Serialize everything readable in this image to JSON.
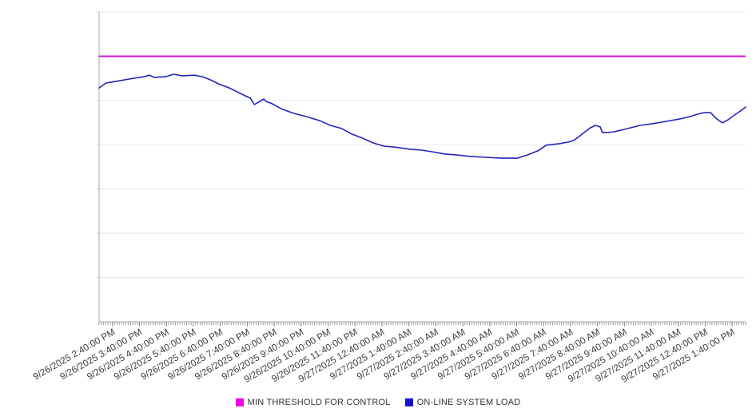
{
  "chart_data": {
    "type": "line",
    "title": "",
    "x_axis": {
      "tick_labels": [
        "9/26/2025 2:40:00 PM",
        "9/26/2025 3:40:00 PM",
        "9/26/2025 4:40:00 PM",
        "9/26/2025 5:40:00 PM",
        "9/26/2025 6:40:00 PM",
        "9/26/2025 7:40:00 PM",
        "9/26/2025 8:40:00 PM",
        "9/26/2025 9:40:00 PM",
        "9/26/2025 10:40:00 PM",
        "9/26/2025 11:40:00 PM",
        "9/27/2025 12:40:00 AM",
        "9/27/2025 1:40:00 AM",
        "9/27/2025 2:40:00 AM",
        "9/27/2025 3:40:00 AM",
        "9/27/2025 4:40:00 AM",
        "9/27/2025 5:40:00 AM",
        "9/27/2025 6:40:00 AM",
        "9/27/2025 7:40:00 AM",
        "9/27/2025 8:40:00 AM",
        "9/27/2025 9:40:00 AM",
        "9/27/2025 10:40:00 AM",
        "9/27/2025 11:40:00 AM",
        "9/27/2025 12:40:00 PM",
        "9/27/2025 1:40:00 PM"
      ],
      "minor_ticks_per_hour": 12,
      "range_minutes": 1440
    },
    "y_axis": {
      "tick_labels_visible": false,
      "normalized_range": [
        0,
        100
      ],
      "gridline_divisions": 7
    },
    "legend_position": "bottom",
    "series": [
      {
        "name": "MIN THRESHOLD FOR CONTROL",
        "type": "threshold",
        "value": 85.7,
        "color": "#D411D4",
        "legend_swatch_color": "#EE00EE"
      },
      {
        "name": "ON-LINE SYSTEM LOAD",
        "type": "line",
        "color": "#2424BC",
        "legend_swatch_color": "#1414CF",
        "points": [
          [
            0,
            75.5
          ],
          [
            16,
            77.1
          ],
          [
            46,
            77.8
          ],
          [
            77,
            78.6
          ],
          [
            100,
            79.1
          ],
          [
            112,
            79.6
          ],
          [
            123,
            78.9
          ],
          [
            148,
            79.1
          ],
          [
            166,
            79.9
          ],
          [
            184,
            79.4
          ],
          [
            212,
            79.6
          ],
          [
            230,
            79.1
          ],
          [
            248,
            78.1
          ],
          [
            266,
            76.8
          ],
          [
            290,
            75.5
          ],
          [
            301,
            74.7
          ],
          [
            326,
            72.9
          ],
          [
            337,
            72.2
          ],
          [
            346,
            70.1
          ],
          [
            355,
            70.9
          ],
          [
            367,
            71.9
          ],
          [
            372,
            71.1
          ],
          [
            385,
            70.4
          ],
          [
            408,
            68.6
          ],
          [
            433,
            67.3
          ],
          [
            462,
            66.2
          ],
          [
            492,
            64.9
          ],
          [
            515,
            63.4
          ],
          [
            540,
            62.4
          ],
          [
            563,
            60.6
          ],
          [
            586,
            59.3
          ],
          [
            611,
            57.7
          ],
          [
            634,
            56.7
          ],
          [
            658,
            56.4
          ],
          [
            693,
            55.7
          ],
          [
            718,
            55.4
          ],
          [
            741,
            54.9
          ],
          [
            772,
            54.1
          ],
          [
            795,
            53.9
          ],
          [
            825,
            53.4
          ],
          [
            861,
            53.1
          ],
          [
            896,
            52.8
          ],
          [
            932,
            52.8
          ],
          [
            955,
            53.9
          ],
          [
            978,
            55.2
          ],
          [
            996,
            57.0
          ],
          [
            1026,
            57.5
          ],
          [
            1044,
            58.0
          ],
          [
            1057,
            58.5
          ],
          [
            1069,
            59.8
          ],
          [
            1082,
            61.3
          ],
          [
            1094,
            62.6
          ],
          [
            1105,
            63.4
          ],
          [
            1116,
            62.9
          ],
          [
            1121,
            61.1
          ],
          [
            1133,
            61.1
          ],
          [
            1146,
            61.3
          ],
          [
            1169,
            62.1
          ],
          [
            1205,
            63.4
          ],
          [
            1231,
            63.9
          ],
          [
            1263,
            64.7
          ],
          [
            1294,
            65.5
          ],
          [
            1315,
            66.2
          ],
          [
            1333,
            67.0
          ],
          [
            1347,
            67.5
          ],
          [
            1362,
            67.5
          ],
          [
            1374,
            65.7
          ],
          [
            1388,
            64.2
          ],
          [
            1401,
            65.2
          ],
          [
            1413,
            66.5
          ],
          [
            1431,
            68.3
          ],
          [
            1440,
            69.3
          ]
        ]
      }
    ],
    "style": {
      "gridline_color": "#e8e8e8",
      "axis_color": "#a8a8a8",
      "tick_color": "#999999",
      "label_color": "#404040"
    }
  }
}
